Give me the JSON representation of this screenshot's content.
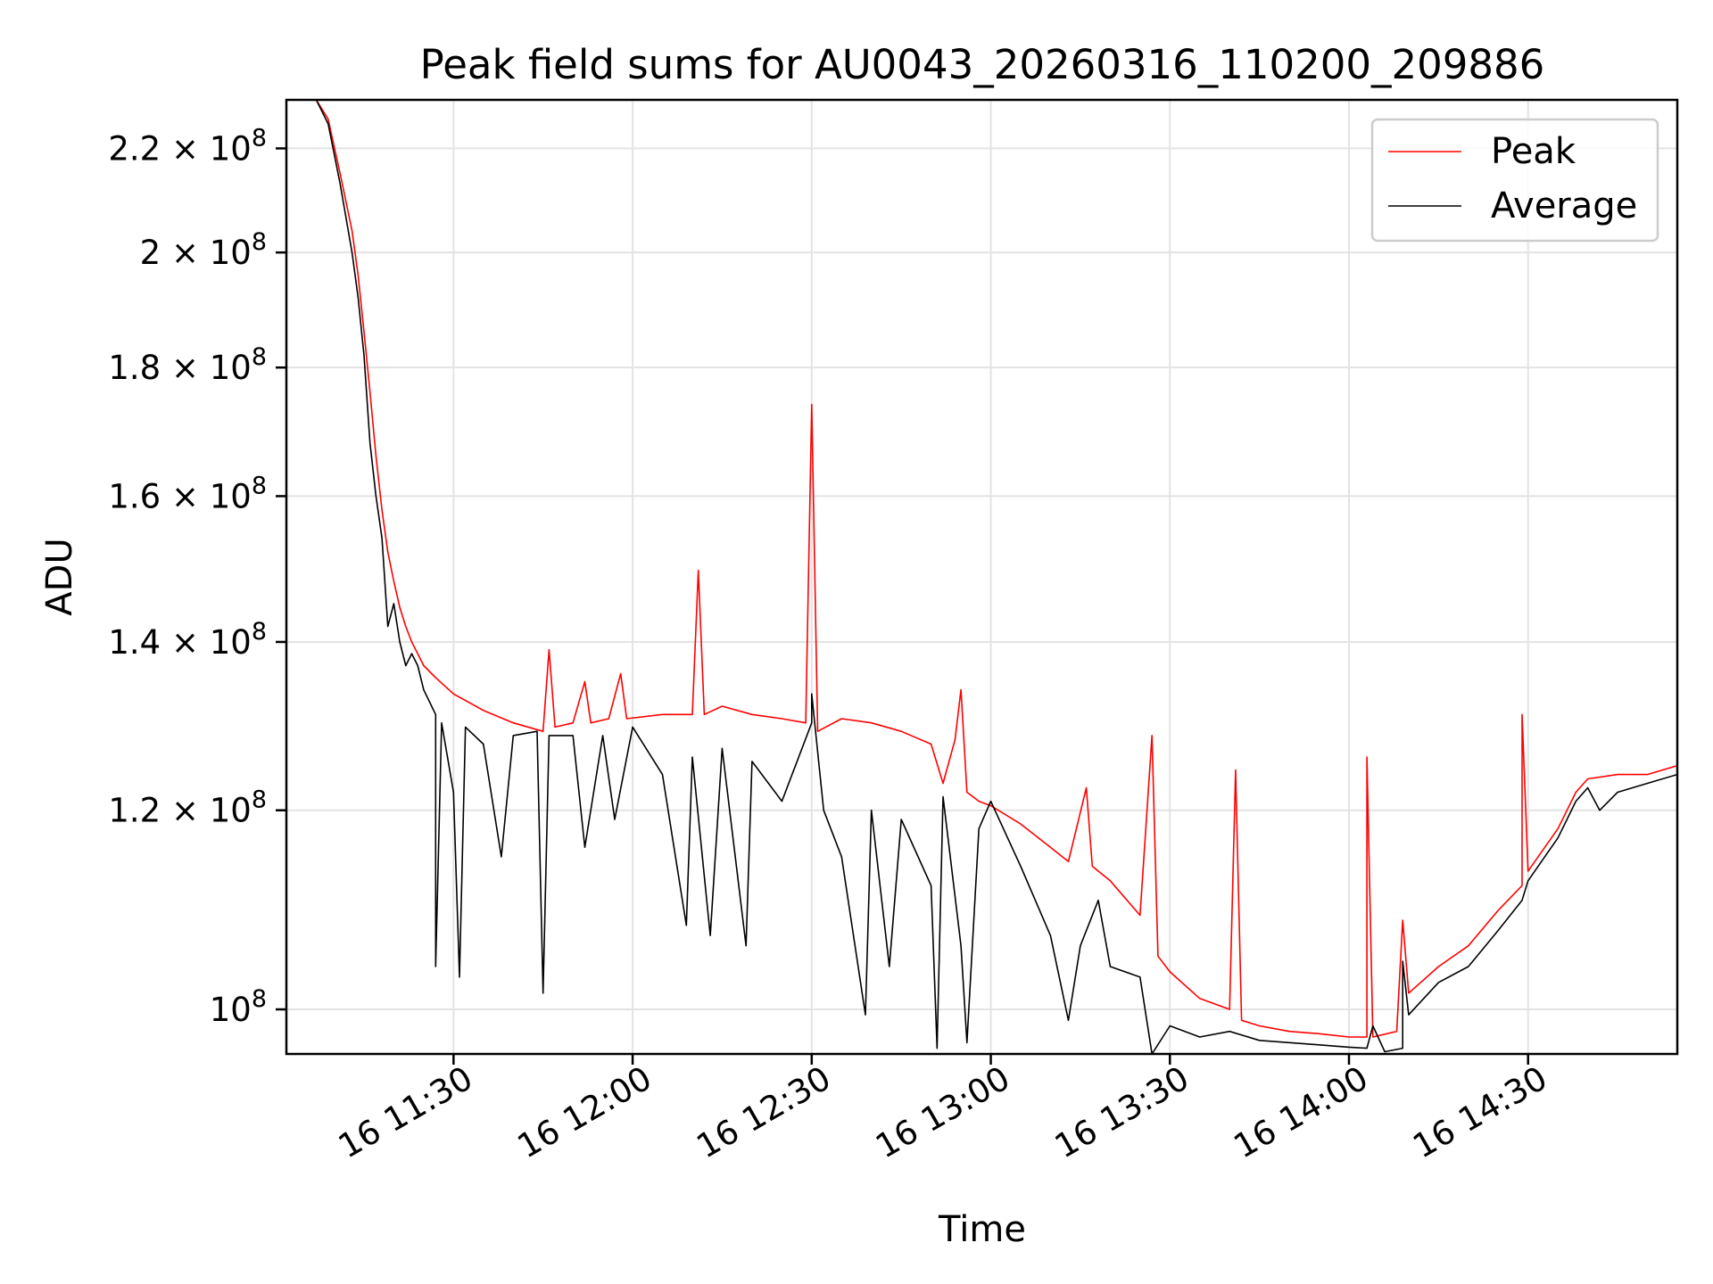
{
  "chart_data": {
    "type": "line",
    "title": "Peak field sums for AU0043_20260316_110200_209886",
    "xlabel": "Time",
    "ylabel": "ADU",
    "x_range": [
      "2026-03-16 11:02",
      "2026-03-16 14:55"
    ],
    "y_scale": "log",
    "ylim": [
      96000000,
      230000000
    ],
    "grid": true,
    "legend_position": "top-right",
    "x_ticks": [
      {
        "value": "2026-03-16 11:30",
        "label": "16 11:30"
      },
      {
        "value": "2026-03-16 12:00",
        "label": "16 12:00"
      },
      {
        "value": "2026-03-16 12:30",
        "label": "16 12:30"
      },
      {
        "value": "2026-03-16 13:00",
        "label": "16 13:00"
      },
      {
        "value": "2026-03-16 13:30",
        "label": "16 13:30"
      },
      {
        "value": "2026-03-16 14:00",
        "label": "16 14:00"
      },
      {
        "value": "2026-03-16 14:30",
        "label": "16 14:30"
      }
    ],
    "y_ticks": [
      {
        "value": 100000000,
        "base": "10",
        "exp": "8"
      },
      {
        "value": 120000000,
        "base": "1.2 × 10",
        "exp": "8"
      },
      {
        "value": 140000000,
        "base": "1.4 × 10",
        "exp": "8"
      },
      {
        "value": 160000000,
        "base": "1.6 × 10",
        "exp": "8"
      },
      {
        "value": 180000000,
        "base": "1.8 × 10",
        "exp": "8"
      },
      {
        "value": 200000000,
        "base": "2 × 10",
        "exp": "8"
      },
      {
        "value": 220000000,
        "base": "2.2 × 10",
        "exp": "8"
      }
    ],
    "series": [
      {
        "name": "Peak",
        "color": "#ff0000",
        "points": [
          [
            "2026-03-16 11:02",
            230000000
          ],
          [
            "2026-03-16 11:07",
            230000000
          ],
          [
            "2026-03-16 11:09",
            226000000
          ],
          [
            "2026-03-16 11:11",
            215000000
          ],
          [
            "2026-03-16 11:13",
            204000000
          ],
          [
            "2026-03-16 11:14",
            196000000
          ],
          [
            "2026-03-16 11:15",
            186000000
          ],
          [
            "2026-03-16 11:16",
            176000000
          ],
          [
            "2026-03-16 11:17",
            166000000
          ],
          [
            "2026-03-16 11:18",
            158000000
          ],
          [
            "2026-03-16 11:19",
            152000000
          ],
          [
            "2026-03-16 11:20",
            148000000
          ],
          [
            "2026-03-16 11:21",
            144500000
          ],
          [
            "2026-03-16 11:22",
            142000000
          ],
          [
            "2026-03-16 11:23",
            140000000
          ],
          [
            "2026-03-16 11:24",
            138500000
          ],
          [
            "2026-03-16 11:25",
            137000000
          ],
          [
            "2026-03-16 11:27",
            135500000
          ],
          [
            "2026-03-16 11:30",
            133500000
          ],
          [
            "2026-03-16 11:35",
            131500000
          ],
          [
            "2026-03-16 11:40",
            130000000
          ],
          [
            "2026-03-16 11:45",
            129000000
          ],
          [
            "2026-03-16 11:46",
            139000000
          ],
          [
            "2026-03-16 11:47",
            129500000
          ],
          [
            "2026-03-16 11:50",
            130000000
          ],
          [
            "2026-03-16 11:52",
            135000000
          ],
          [
            "2026-03-16 11:53",
            130000000
          ],
          [
            "2026-03-16 11:56",
            130500000
          ],
          [
            "2026-03-16 11:58",
            136000000
          ],
          [
            "2026-03-16 11:59",
            130500000
          ],
          [
            "2026-03-16 12:05",
            131000000
          ],
          [
            "2026-03-16 12:10",
            131000000
          ],
          [
            "2026-03-16 12:11",
            149500000
          ],
          [
            "2026-03-16 12:12",
            131000000
          ],
          [
            "2026-03-16 12:15",
            132000000
          ],
          [
            "2026-03-16 12:20",
            131000000
          ],
          [
            "2026-03-16 12:25",
            130500000
          ],
          [
            "2026-03-16 12:29",
            130000000
          ],
          [
            "2026-03-16 12:30",
            174000000
          ],
          [
            "2026-03-16 12:31",
            129000000
          ],
          [
            "2026-03-16 12:35",
            130500000
          ],
          [
            "2026-03-16 12:40",
            130000000
          ],
          [
            "2026-03-16 12:45",
            129000000
          ],
          [
            "2026-03-16 12:50",
            127500000
          ],
          [
            "2026-03-16 12:52",
            123000000
          ],
          [
            "2026-03-16 12:54",
            128000000
          ],
          [
            "2026-03-16 12:55",
            134000000
          ],
          [
            "2026-03-16 12:56",
            122000000
          ],
          [
            "2026-03-16 12:58",
            121000000
          ],
          [
            "2026-03-16 13:00",
            120500000
          ],
          [
            "2026-03-16 13:05",
            118500000
          ],
          [
            "2026-03-16 13:10",
            116000000
          ],
          [
            "2026-03-16 13:13",
            114500000
          ],
          [
            "2026-03-16 13:16",
            122500000
          ],
          [
            "2026-03-16 13:17",
            114000000
          ],
          [
            "2026-03-16 13:20",
            112500000
          ],
          [
            "2026-03-16 13:25",
            109000000
          ],
          [
            "2026-03-16 13:27",
            128500000
          ],
          [
            "2026-03-16 13:28",
            105000000
          ],
          [
            "2026-03-16 13:30",
            103500000
          ],
          [
            "2026-03-16 13:35",
            101000000
          ],
          [
            "2026-03-16 13:40",
            100000000
          ],
          [
            "2026-03-16 13:41",
            124500000
          ],
          [
            "2026-03-16 13:42",
            99000000
          ],
          [
            "2026-03-16 13:45",
            98500000
          ],
          [
            "2026-03-16 13:50",
            98000000
          ],
          [
            "2026-03-16 13:55",
            97800000
          ],
          [
            "2026-03-16 14:00",
            97500000
          ],
          [
            "2026-03-16 14:03",
            97500000
          ],
          [
            "2026-03-16 14:03",
            126000000
          ],
          [
            "2026-03-16 14:04",
            97500000
          ],
          [
            "2026-03-16 14:08",
            98000000
          ],
          [
            "2026-03-16 14:09",
            108500000
          ],
          [
            "2026-03-16 14:10",
            101500000
          ],
          [
            "2026-03-16 14:15",
            104000000
          ],
          [
            "2026-03-16 14:20",
            106000000
          ],
          [
            "2026-03-16 14:25",
            109500000
          ],
          [
            "2026-03-16 14:29",
            112000000
          ],
          [
            "2026-03-16 14:29",
            131000000
          ],
          [
            "2026-03-16 14:30",
            113500000
          ],
          [
            "2026-03-16 14:35",
            118000000
          ],
          [
            "2026-03-16 14:38",
            122000000
          ],
          [
            "2026-03-16 14:40",
            123500000
          ],
          [
            "2026-03-16 14:45",
            124000000
          ],
          [
            "2026-03-16 14:50",
            124000000
          ],
          [
            "2026-03-16 14:55",
            125000000
          ]
        ]
      },
      {
        "name": "Average",
        "color": "#000000",
        "points": [
          [
            "2026-03-16 11:02",
            230000000
          ],
          [
            "2026-03-16 11:07",
            230000000
          ],
          [
            "2026-03-16 11:09",
            225000000
          ],
          [
            "2026-03-16 11:11",
            213000000
          ],
          [
            "2026-03-16 11:13",
            200000000
          ],
          [
            "2026-03-16 11:14",
            192000000
          ],
          [
            "2026-03-16 11:15",
            182000000
          ],
          [
            "2026-03-16 11:16",
            168000000
          ],
          [
            "2026-03-16 11:17",
            160000000
          ],
          [
            "2026-03-16 11:18",
            154000000
          ],
          [
            "2026-03-16 11:19",
            142000000
          ],
          [
            "2026-03-16 11:20",
            145000000
          ],
          [
            "2026-03-16 11:21",
            140000000
          ],
          [
            "2026-03-16 11:22",
            137000000
          ],
          [
            "2026-03-16 11:23",
            138500000
          ],
          [
            "2026-03-16 11:24",
            137000000
          ],
          [
            "2026-03-16 11:25",
            134000000
          ],
          [
            "2026-03-16 11:27",
            131000000
          ],
          [
            "2026-03-16 11:27",
            104000000
          ],
          [
            "2026-03-16 11:28",
            130000000
          ],
          [
            "2026-03-16 11:30",
            122000000
          ],
          [
            "2026-03-16 11:31",
            103000000
          ],
          [
            "2026-03-16 11:32",
            129500000
          ],
          [
            "2026-03-16 11:35",
            127500000
          ],
          [
            "2026-03-16 11:38",
            115000000
          ],
          [
            "2026-03-16 11:40",
            128500000
          ],
          [
            "2026-03-16 11:44",
            129000000
          ],
          [
            "2026-03-16 11:45",
            101500000
          ],
          [
            "2026-03-16 11:46",
            128500000
          ],
          [
            "2026-03-16 11:50",
            128500000
          ],
          [
            "2026-03-16 11:52",
            116000000
          ],
          [
            "2026-03-16 11:55",
            128500000
          ],
          [
            "2026-03-16 11:57",
            119000000
          ],
          [
            "2026-03-16 12:00",
            129500000
          ],
          [
            "2026-03-16 12:05",
            124000000
          ],
          [
            "2026-03-16 12:09",
            108000000
          ],
          [
            "2026-03-16 12:10",
            126000000
          ],
          [
            "2026-03-16 12:13",
            107000000
          ],
          [
            "2026-03-16 12:15",
            127000000
          ],
          [
            "2026-03-16 12:19",
            106000000
          ],
          [
            "2026-03-16 12:20",
            125500000
          ],
          [
            "2026-03-16 12:25",
            121000000
          ],
          [
            "2026-03-16 12:30",
            130000000
          ],
          [
            "2026-03-16 12:30",
            133500000
          ],
          [
            "2026-03-16 12:32",
            120000000
          ],
          [
            "2026-03-16 12:35",
            115000000
          ],
          [
            "2026-03-16 12:39",
            99500000
          ],
          [
            "2026-03-16 12:40",
            120000000
          ],
          [
            "2026-03-16 12:43",
            104000000
          ],
          [
            "2026-03-16 12:45",
            119000000
          ],
          [
            "2026-03-16 12:50",
            112000000
          ],
          [
            "2026-03-16 12:51",
            96500000
          ],
          [
            "2026-03-16 12:52",
            121500000
          ],
          [
            "2026-03-16 12:55",
            106000000
          ],
          [
            "2026-03-16 12:56",
            97000000
          ],
          [
            "2026-03-16 12:58",
            118000000
          ],
          [
            "2026-03-16 13:00",
            121000000
          ],
          [
            "2026-03-16 13:05",
            114000000
          ],
          [
            "2026-03-16 13:10",
            107000000
          ],
          [
            "2026-03-16 13:13",
            99000000
          ],
          [
            "2026-03-16 13:15",
            106000000
          ],
          [
            "2026-03-16 13:18",
            110500000
          ],
          [
            "2026-03-16 13:20",
            104000000
          ],
          [
            "2026-03-16 13:25",
            103000000
          ],
          [
            "2026-03-16 13:27",
            96000000
          ],
          [
            "2026-03-16 13:30",
            98500000
          ],
          [
            "2026-03-16 13:35",
            97500000
          ],
          [
            "2026-03-16 13:40",
            98000000
          ],
          [
            "2026-03-16 13:45",
            97200000
          ],
          [
            "2026-03-16 13:50",
            97000000
          ],
          [
            "2026-03-16 13:55",
            96800000
          ],
          [
            "2026-03-16 14:00",
            96600000
          ],
          [
            "2026-03-16 14:03",
            96500000
          ],
          [
            "2026-03-16 14:04",
            98500000
          ],
          [
            "2026-03-16 14:06",
            96200000
          ],
          [
            "2026-03-16 14:09",
            96500000
          ],
          [
            "2026-03-16 14:09",
            104500000
          ],
          [
            "2026-03-16 14:10",
            99500000
          ],
          [
            "2026-03-16 14:15",
            102500000
          ],
          [
            "2026-03-16 14:20",
            104000000
          ],
          [
            "2026-03-16 14:25",
            107500000
          ],
          [
            "2026-03-16 14:29",
            110500000
          ],
          [
            "2026-03-16 14:30",
            112500000
          ],
          [
            "2026-03-16 14:35",
            117000000
          ],
          [
            "2026-03-16 14:38",
            121000000
          ],
          [
            "2026-03-16 14:40",
            122500000
          ],
          [
            "2026-03-16 14:42",
            120000000
          ],
          [
            "2026-03-16 14:45",
            122000000
          ],
          [
            "2026-03-16 14:50",
            123000000
          ],
          [
            "2026-03-16 14:55",
            124000000
          ]
        ]
      }
    ]
  }
}
